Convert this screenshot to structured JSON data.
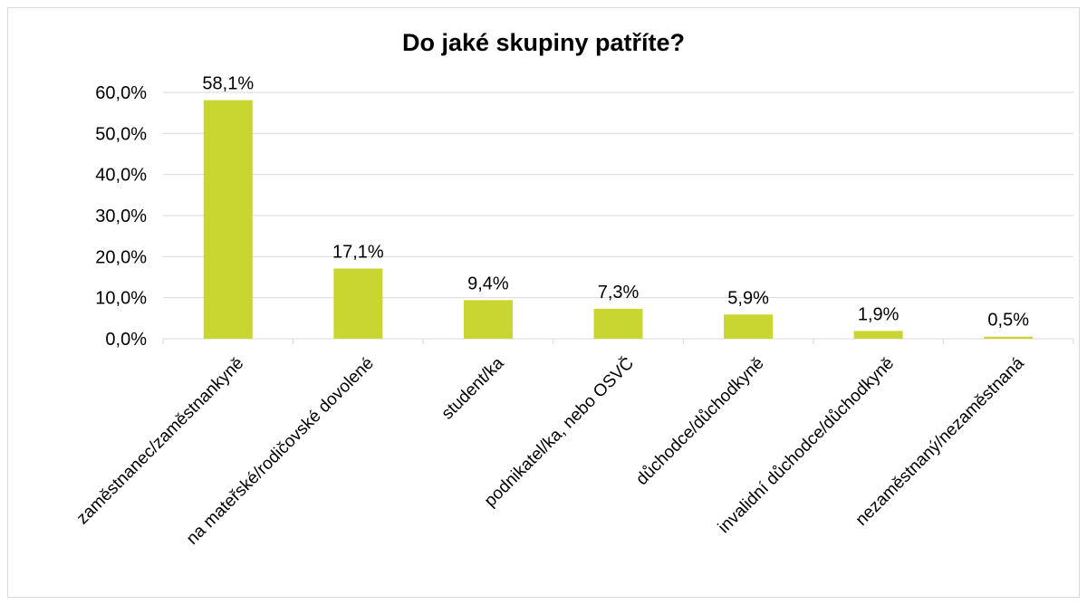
{
  "chart_data": {
    "type": "bar",
    "title": "Do jaké skupiny patříte?",
    "xlabel": "",
    "ylabel": "",
    "categories": [
      "zaměstnanec/zaměstnankyně",
      "na mateřské/rodičovské dovolené",
      "student/ka",
      "podnikatel/ka, nebo OSVČ",
      "důchodce/důchodkyně",
      "invalidní důchodce/důchodkyně",
      "nezaměstnaný/nezaměstnaná"
    ],
    "values": [
      58.1,
      17.1,
      9.4,
      7.3,
      5.9,
      1.9,
      0.5
    ],
    "data_labels": [
      "58,1%",
      "17,1%",
      "9,4%",
      "7,3%",
      "5,9%",
      "1,9%",
      "0,5%"
    ],
    "ylim": [
      0,
      60
    ],
    "yticks": [
      0,
      10,
      20,
      30,
      40,
      50,
      60
    ],
    "ytick_labels": [
      "0,0%",
      "10,0%",
      "20,0%",
      "30,0%",
      "40,0%",
      "50,0%",
      "60,0%"
    ],
    "grid": true,
    "legend": "none",
    "bar_color": "#c9d530",
    "gridline_color": "#d9d9d9"
  }
}
